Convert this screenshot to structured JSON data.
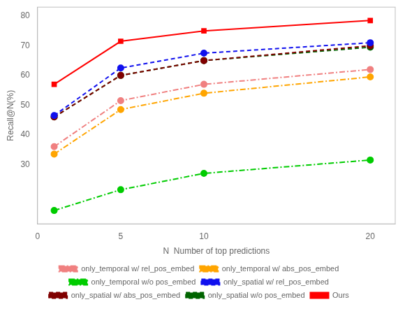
{
  "chart_data": {
    "type": "line",
    "x": [
      1,
      5,
      10,
      20
    ],
    "series": [
      {
        "name": "only_temporal w/ rel_pos_embed",
        "values": [
          36.0,
          51.5,
          57.0,
          62.0
        ],
        "color": "#F08080",
        "line_style": "dashdot",
        "marker": "circle"
      },
      {
        "name": "only_temporal w/ abs_pos_embed",
        "values": [
          33.5,
          48.5,
          54.0,
          59.5
        ],
        "color": "#FFA500",
        "line_style": "dashdot",
        "marker": "circle"
      },
      {
        "name": "only_temporal w/o pos_embed",
        "values": [
          14.5,
          21.5,
          27.0,
          31.5
        ],
        "color": "#00CC00",
        "line_style": "dashdot",
        "marker": "circle"
      },
      {
        "name": "only_spatial w/ rel_pos_embed",
        "values": [
          46.5,
          62.5,
          67.5,
          71.0
        ],
        "color": "#1010EE",
        "line_style": "dashed",
        "marker": "circle"
      },
      {
        "name": "only_spatial w/ abs_pos_embed",
        "values": [
          46.0,
          60.0,
          65.0,
          70.0
        ],
        "color": "#800000",
        "line_style": "dashed",
        "marker": "circle"
      },
      {
        "name": "only_spatial w/o pos_embed",
        "values": [
          46.0,
          60.0,
          65.0,
          69.5
        ],
        "color": "#006400",
        "line_style": "dashed",
        "marker": "circle"
      },
      {
        "name": "Ours",
        "values": [
          57.0,
          71.5,
          75.0,
          78.5
        ],
        "color": "#FF0000",
        "line_style": "solid",
        "marker": "square"
      }
    ],
    "x_label": "N  Number of top predictions",
    "y_label": "Recall@N(%)",
    "xlim": [
      0,
      21.5
    ],
    "ylim": [
      10,
      83
    ],
    "xticks": [
      0,
      5,
      10,
      20
    ],
    "yticks": [
      30,
      40,
      50,
      60,
      70,
      80
    ],
    "grid": false,
    "legend": "bottom"
  }
}
